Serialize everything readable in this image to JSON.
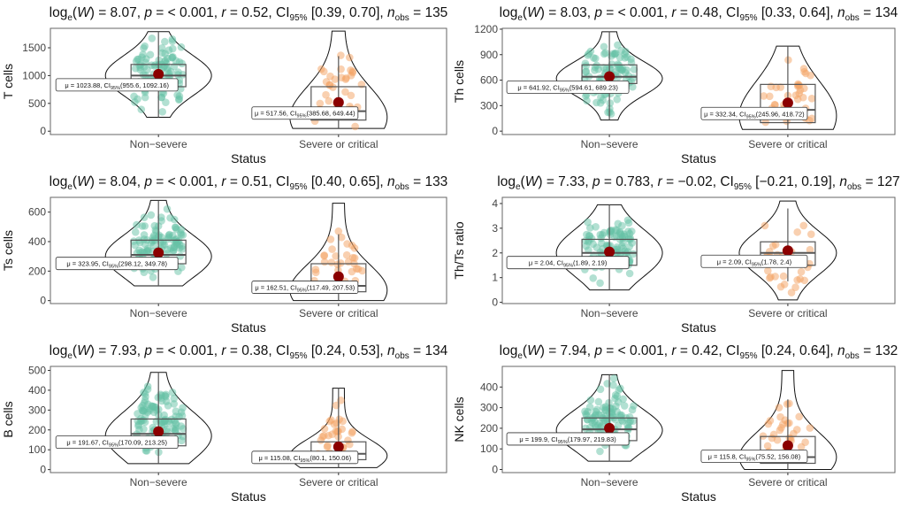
{
  "chart_data": [
    {
      "type": "violin",
      "title": {
        "logW": "8.07",
        "p": "< 0.001",
        "r": "0.52",
        "ci": "[0.39, 0.70]",
        "n": "135"
      },
      "ylabel": "T cells",
      "xlabel": "Status",
      "yticks": [
        0,
        500,
        1000,
        1500
      ],
      "ylim": [
        -60,
        1850
      ],
      "groups": [
        {
          "name": "Non−severe",
          "mean": 1023.88,
          "label": "μ = 1023.88, CI",
          "ci_text": "(955.6, 1092.16)",
          "q1": 800,
          "median": 1000,
          "q3": 1200,
          "wlo": 250,
          "whi": 1790,
          "vlo": 250,
          "vhi": 1790,
          "mode": 1000,
          "n": 100
        },
        {
          "name": "Severe or critical",
          "mean": 517.56,
          "label": "μ = 517.56, CI",
          "ci_text": "(385.68, 649.44)",
          "q1": 200,
          "median": 360,
          "q3": 800,
          "wlo": 50,
          "whi": 1350,
          "vlo": 50,
          "vhi": 1800,
          "mode": 250,
          "n": 35
        }
      ]
    },
    {
      "type": "violin",
      "title": {
        "logW": "8.03",
        "p": "< 0.001",
        "r": "0.48",
        "ci": "[0.33, 0.64]",
        "n": "134"
      },
      "ylabel": "Th cells",
      "xlabel": "Status",
      "yticks": [
        0,
        300,
        600,
        900,
        1200
      ],
      "ylim": [
        -40,
        1210
      ],
      "groups": [
        {
          "name": "Non−severe",
          "mean": 641.92,
          "label": "μ = 641.92, CI",
          "ci_text": "(594.61, 689.23)",
          "q1": 560,
          "median": 640,
          "q3": 780,
          "wlo": 130,
          "whi": 1170,
          "vlo": 130,
          "vhi": 1170,
          "mode": 620,
          "n": 100
        },
        {
          "name": "Severe or critical",
          "mean": 332.34,
          "label": "μ = 332.34, CI",
          "ci_text": "(245.96, 418.72)",
          "q1": 100,
          "median": 250,
          "q3": 550,
          "wlo": 20,
          "whi": 1000,
          "vlo": 20,
          "vhi": 1000,
          "mode": 180,
          "n": 34
        }
      ]
    },
    {
      "type": "violin",
      "title": {
        "logW": "8.04",
        "p": "< 0.001",
        "r": "0.51",
        "ci": "[0.40, 0.65]",
        "n": "133"
      },
      "ylabel": "Ts cells",
      "xlabel": "Status",
      "yticks": [
        0,
        200,
        400,
        600
      ],
      "ylim": [
        -20,
        700
      ],
      "groups": [
        {
          "name": "Non−severe",
          "mean": 323.95,
          "label": "μ = 323.95, CI",
          "ci_text": "(298.12, 349.78)",
          "q1": 250,
          "median": 310,
          "q3": 410,
          "wlo": 100,
          "whi": 680,
          "vlo": 100,
          "vhi": 680,
          "mode": 300,
          "n": 100
        },
        {
          "name": "Severe or critical",
          "mean": 162.51,
          "label": "μ = 162.51, CI",
          "ci_text": "(117.49, 207.53)",
          "q1": 60,
          "median": 100,
          "q3": 250,
          "wlo": 0,
          "whi": 450,
          "vlo": 0,
          "vhi": 660,
          "mode": 70,
          "n": 33
        }
      ]
    },
    {
      "type": "violin",
      "title": {
        "logW": "7.33",
        "p": "0.783",
        "r": "−0.02",
        "ci": "[−0.21, 0.19]",
        "n": "127"
      },
      "ylabel": "Th/Ts ratio",
      "xlabel": "Status",
      "yticks": [
        0,
        1,
        2,
        3,
        4
      ],
      "ylim": [
        -0.05,
        4.25
      ],
      "groups": [
        {
          "name": "Non−severe",
          "mean": 2.04,
          "label": "μ = 2.04, CI",
          "ci_text": "(1.89, 2.19)",
          "q1": 1.5,
          "median": 2.0,
          "q3": 2.55,
          "wlo": 0.5,
          "whi": 3.95,
          "vlo": 0.5,
          "vhi": 3.95,
          "mode": 2.0,
          "n": 95
        },
        {
          "name": "Severe or critical",
          "mean": 2.09,
          "label": "μ = 2.09, CI",
          "ci_text": "(1.78, 2.4)",
          "q1": 1.5,
          "median": 2.0,
          "q3": 2.45,
          "wlo": 0.85,
          "whi": 3.8,
          "vlo": 0.1,
          "vhi": 4.1,
          "mode": 2.0,
          "n": 32
        }
      ]
    },
    {
      "type": "violin",
      "title": {
        "logW": "7.93",
        "p": "< 0.001",
        "r": "0.38",
        "ci": "[0.24, 0.53]",
        "n": "134"
      },
      "ylabel": "B cells",
      "xlabel": "Status",
      "yticks": [
        0,
        100,
        200,
        300,
        400,
        500
      ],
      "ylim": [
        -15,
        520
      ],
      "groups": [
        {
          "name": "Non−severe",
          "mean": 191.67,
          "label": "μ = 191.67, CI",
          "ci_text": "(170.09, 213.25)",
          "q1": 120,
          "median": 180,
          "q3": 255,
          "wlo": 30,
          "whi": 490,
          "vlo": 30,
          "vhi": 490,
          "mode": 170,
          "n": 100
        },
        {
          "name": "Severe or critical",
          "mean": 115.08,
          "label": "μ = 115.08, CI",
          "ci_text": "(80.1, 150.06)",
          "q1": 50,
          "median": 80,
          "q3": 140,
          "wlo": 10,
          "whi": 410,
          "vlo": 10,
          "vhi": 410,
          "mode": 70,
          "n": 34
        }
      ]
    },
    {
      "type": "violin",
      "title": {
        "logW": "7.94",
        "p": "< 0.001",
        "r": "0.42",
        "ci": "[0.24, 0.64]",
        "n": "132"
      },
      "ylabel": "NK cells",
      "xlabel": "Status",
      "yticks": [
        0,
        100,
        200,
        300,
        400
      ],
      "ylim": [
        -15,
        500
      ],
      "groups": [
        {
          "name": "Non−severe",
          "mean": 199.9,
          "label": "μ = 199.9, CI",
          "ci_text": "(179.97, 219.83)",
          "q1": 140,
          "median": 195,
          "q3": 250,
          "wlo": 40,
          "whi": 460,
          "vlo": 40,
          "vhi": 460,
          "mode": 190,
          "n": 100
        },
        {
          "name": "Severe or critical",
          "mean": 115.8,
          "label": "μ = 115.8, CI",
          "ci_text": "(75.52, 156.08)",
          "q1": 30,
          "median": 60,
          "q3": 160,
          "wlo": 0,
          "whi": 340,
          "vlo": 0,
          "vhi": 480,
          "mode": 60,
          "n": 32
        }
      ]
    }
  ],
  "colors": {
    "non_severe": "#66c2a5",
    "severe": "#f4a261",
    "mean": "#8b0000",
    "axis": "#333333"
  }
}
